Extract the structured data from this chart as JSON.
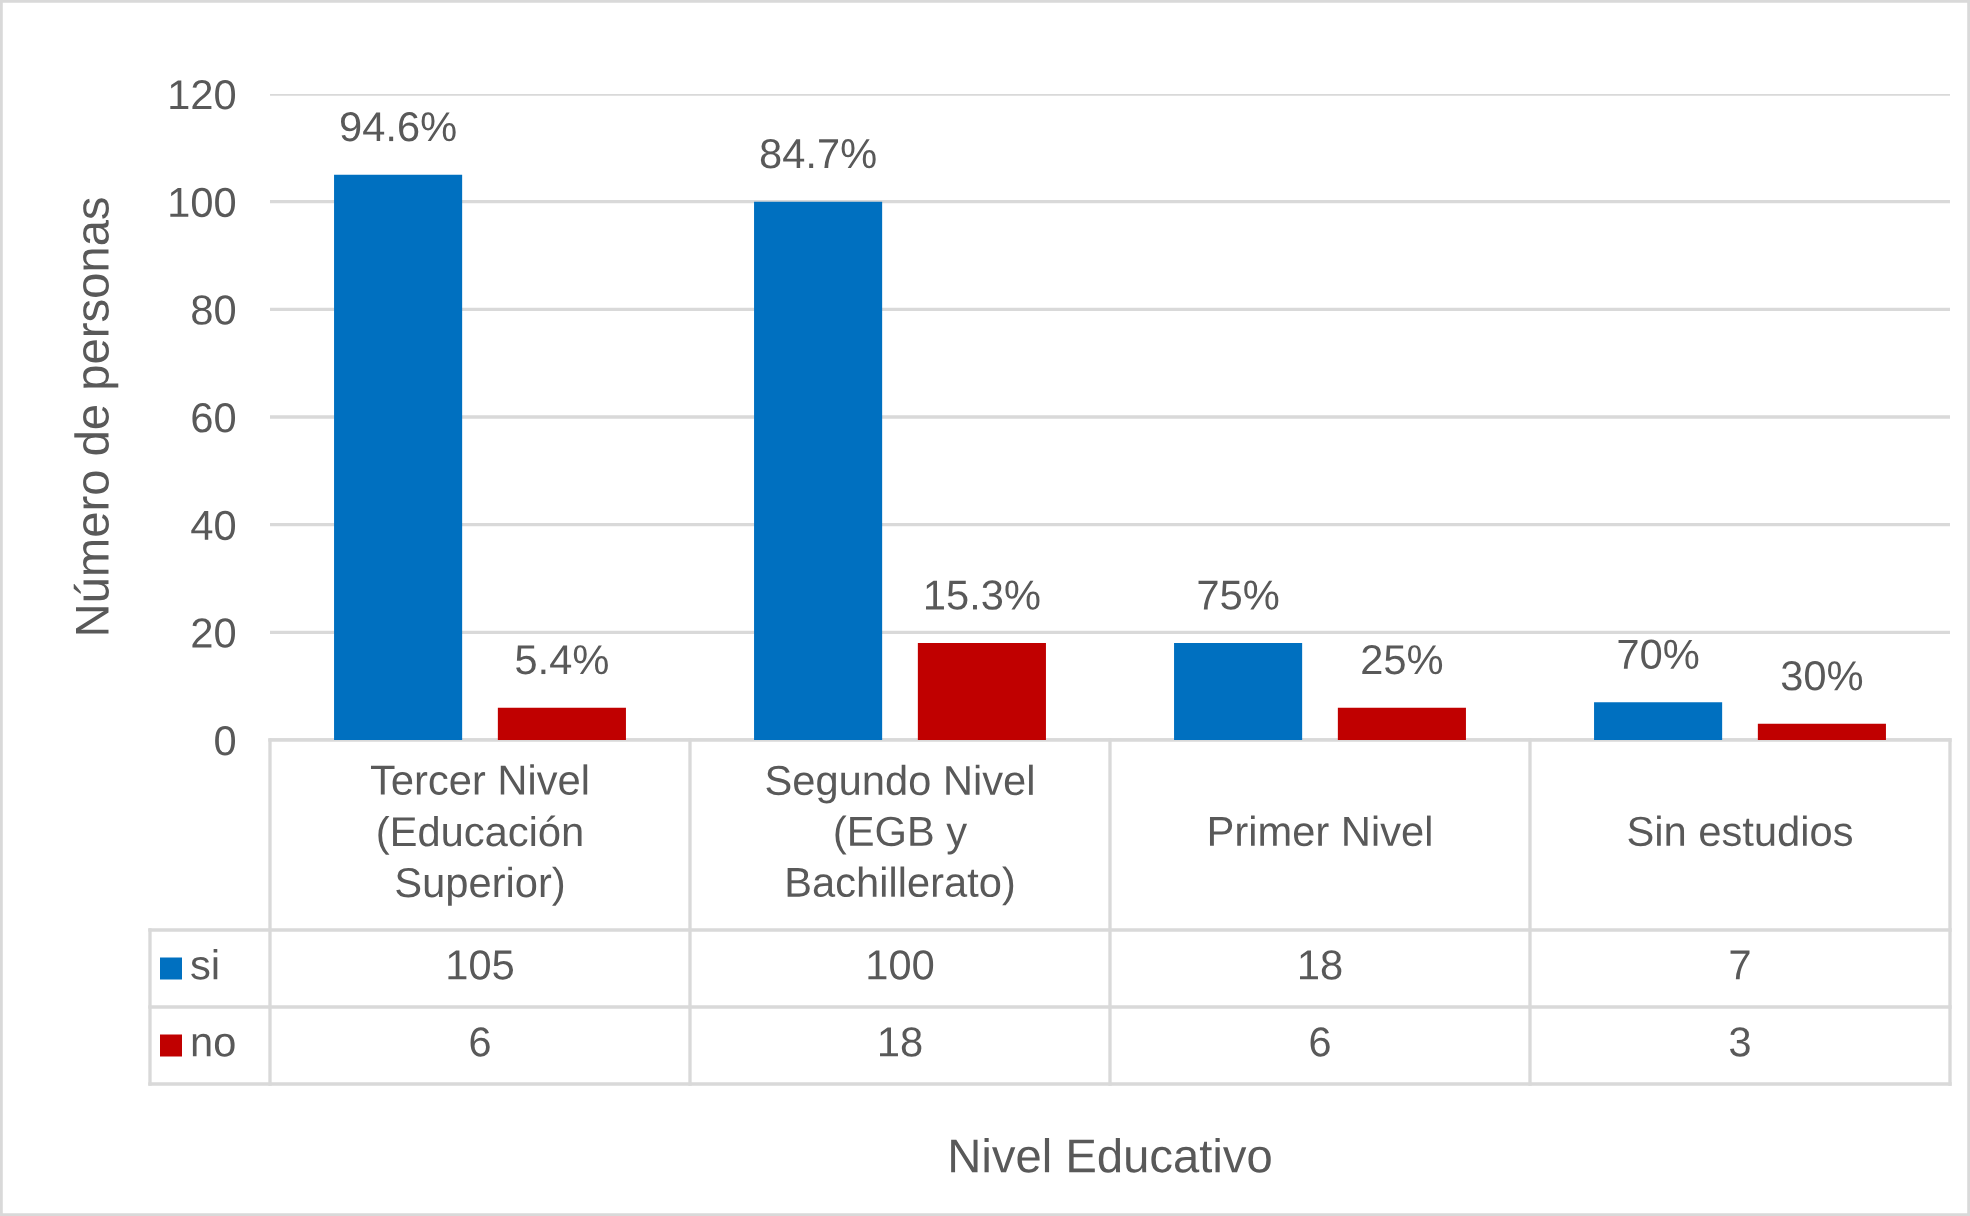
{
  "chart_data": {
    "type": "bar",
    "xlabel": "Nivel Educativo",
    "ylabel": "Número de personas",
    "categories": [
      "Tercer Nivel\n(Educación\nSuperior)",
      "Segundo Nivel\n(EGB y\nBachillerato)",
      "Primer Nivel",
      "Sin estudios"
    ],
    "series": [
      {
        "name": "si",
        "color": "#0070c0",
        "values": [
          105,
          100,
          18,
          7
        ]
      },
      {
        "name": "no",
        "color": "#c00000",
        "values": [
          6,
          18,
          6,
          3
        ]
      }
    ],
    "annotations": [
      "94.6%",
      "5.4%",
      "84.7%",
      "15.3%",
      "75%",
      "25%",
      "70%",
      "30%"
    ],
    "ylim": [
      0,
      120
    ],
    "yticks": [
      0,
      20,
      40,
      60,
      80,
      100,
      120
    ],
    "grid": "y",
    "legend": "bottom",
    "data_labels": true
  }
}
